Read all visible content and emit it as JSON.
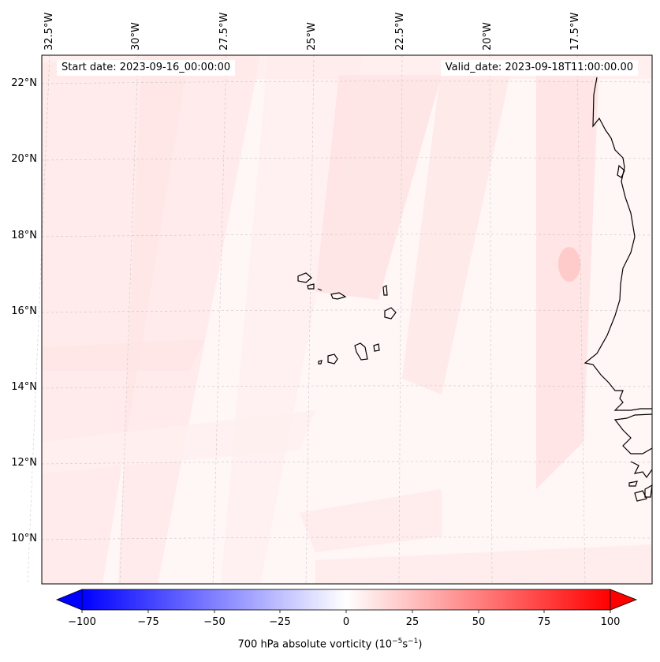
{
  "map": {
    "longitude_labels": [
      "32.5°W",
      "30°W",
      "27.5°W",
      "25°W",
      "22.5°W",
      "20°W",
      "17.5°W"
    ],
    "latitude_labels": [
      "22°N",
      "20°N",
      "18°N",
      "16°N",
      "14°N",
      "12°N",
      "10°N"
    ],
    "start_date": "Start date: 2023-09-16_00:00:00",
    "valid_date": "Valid_date: 2023-09-18T11:00:00.00",
    "gridlines": true,
    "coastline_color": "#000000",
    "features": [
      "West African coastline",
      "Cape Verde islands"
    ]
  },
  "colorbar": {
    "ticks": [
      "−100",
      "−75",
      "−50",
      "−25",
      "0",
      "25",
      "50",
      "75",
      "100"
    ],
    "min": -100,
    "max": 100,
    "label_main": "700 hPa absolute vorticity (10",
    "label_exp1": "−5",
    "label_mid": "s",
    "label_exp2": "−1",
    "label_end": ")",
    "colormap": "bwr",
    "extend": "both",
    "low_color": "#0000ff",
    "mid_color": "#ffffff",
    "high_color": "#ff0000"
  }
}
